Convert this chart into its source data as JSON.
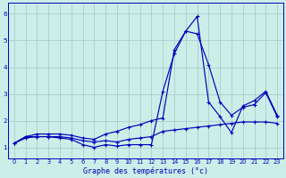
{
  "xlabel": "Graphe des températures (°c)",
  "background_color": "#cceee8",
  "line_color": "#0000bb",
  "grid_color": "#aacccc",
  "x_hours": [
    0,
    1,
    2,
    3,
    4,
    5,
    6,
    7,
    8,
    9,
    10,
    11,
    12,
    13,
    14,
    15,
    16,
    17,
    18,
    19,
    20,
    21,
    22,
    23
  ],
  "line1": [
    1.15,
    1.4,
    1.4,
    1.4,
    1.35,
    1.3,
    1.1,
    1.0,
    1.1,
    1.05,
    1.1,
    1.1,
    1.1,
    3.1,
    4.5,
    5.35,
    5.25,
    4.1,
    2.7,
    2.2,
    2.5,
    2.6,
    3.05,
    2.15
  ],
  "line2": [
    1.15,
    1.4,
    1.5,
    1.5,
    1.5,
    1.45,
    1.35,
    1.3,
    1.5,
    1.6,
    1.75,
    1.85,
    2.0,
    2.1,
    4.65,
    5.35,
    5.9,
    2.7,
    2.15,
    1.55,
    2.55,
    2.75,
    3.1,
    2.2
  ],
  "line3": [
    1.15,
    1.35,
    1.4,
    1.4,
    1.4,
    1.35,
    1.25,
    1.2,
    1.25,
    1.2,
    1.3,
    1.35,
    1.4,
    1.6,
    1.65,
    1.7,
    1.75,
    1.8,
    1.85,
    1.9,
    1.95,
    1.95,
    1.95,
    1.9
  ],
  "ylim": [
    0.6,
    6.4
  ],
  "xlim": [
    -0.5,
    23.5
  ],
  "yticks": [
    1,
    2,
    3,
    4,
    5,
    6
  ],
  "xticks": [
    0,
    1,
    2,
    3,
    4,
    5,
    6,
    7,
    8,
    9,
    10,
    11,
    12,
    13,
    14,
    15,
    16,
    17,
    18,
    19,
    20,
    21,
    22,
    23
  ]
}
